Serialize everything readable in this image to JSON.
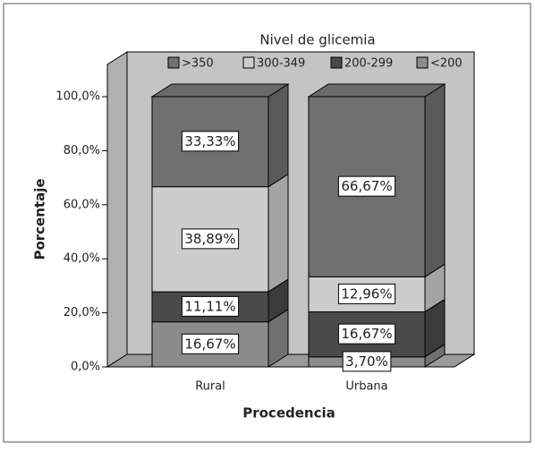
{
  "chart_data": {
    "type": "stacked_bar_3d",
    "title": "Nivel de glicemia",
    "x_label": "Procedencia",
    "y_label": "Porcentaje",
    "categories": [
      "Rural",
      "Urbana"
    ],
    "series": [
      {
        "name": ">350",
        "color": "#707070",
        "values": [
          33.33,
          66.67
        ],
        "value_labels": [
          "33,33%",
          "66,67%"
        ]
      },
      {
        "name": "300-349",
        "color": "#cdcdcd",
        "values": [
          38.89,
          12.96
        ],
        "value_labels": [
          "38,89%",
          "12,96%"
        ]
      },
      {
        "name": "200-299",
        "color": "#4a4a4a",
        "values": [
          11.11,
          16.67
        ],
        "value_labels": [
          "11,11%",
          "16,67%"
        ]
      },
      {
        "name": "<200",
        "color": "#8c8c8c",
        "values": [
          16.67,
          3.7
        ],
        "value_labels": [
          "16,67%",
          "3,70%"
        ]
      }
    ],
    "ylim": [
      0,
      100
    ],
    "yticks": [
      {
        "value": 0,
        "label": "0,0%"
      },
      {
        "value": 20,
        "label": "20,0%"
      },
      {
        "value": 40,
        "label": "40,0%"
      },
      {
        "value": 60,
        "label": "60,0%"
      },
      {
        "value": 80,
        "label": "80,0%"
      },
      {
        "value": 100,
        "label": "100,0%"
      }
    ],
    "legend_position": "top"
  }
}
